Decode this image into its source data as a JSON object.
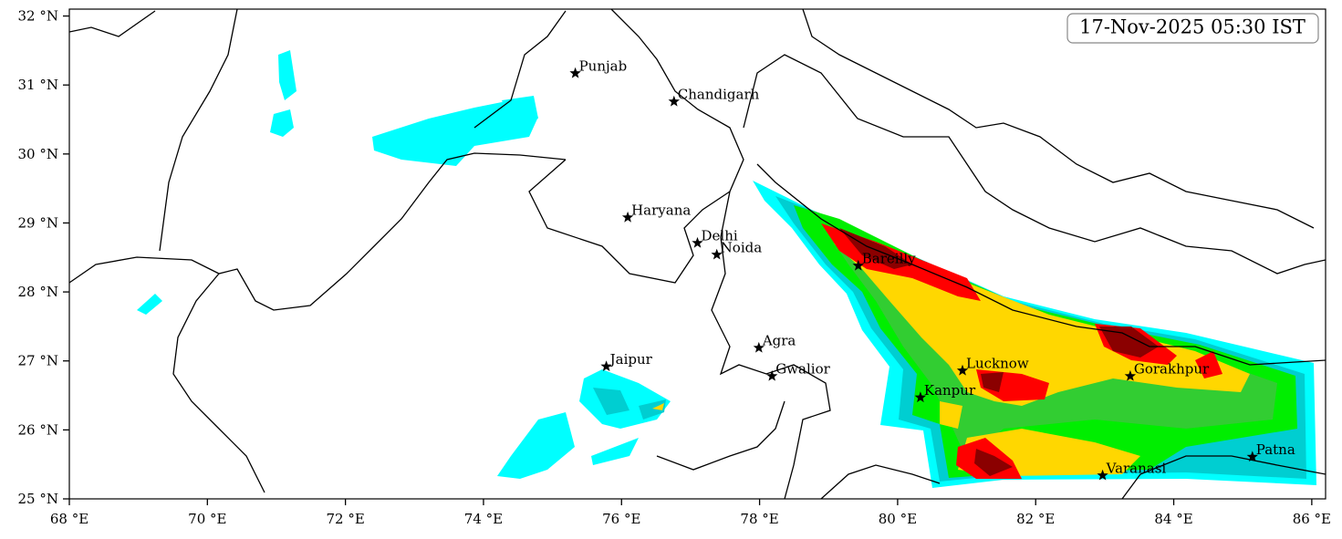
{
  "map": {
    "timestamp": "17-Nov-2025 05:30 IST",
    "xlim": [
      68,
      86.2
    ],
    "ylim": [
      25,
      32.1
    ],
    "xticks": [
      {
        "value": 68,
        "label": "68 °E"
      },
      {
        "value": 70,
        "label": "70 °E"
      },
      {
        "value": 72,
        "label": "72 °E"
      },
      {
        "value": 74,
        "label": "74 °E"
      },
      {
        "value": 76,
        "label": "76 °E"
      },
      {
        "value": 78,
        "label": "78 °E"
      },
      {
        "value": 80,
        "label": "80 °E"
      },
      {
        "value": 82,
        "label": "82 °E"
      },
      {
        "value": 84,
        "label": "84 °E"
      },
      {
        "value": 86,
        "label": "86 °E"
      }
    ],
    "yticks": [
      {
        "value": 25,
        "label": "25 °N"
      },
      {
        "value": 26,
        "label": "26 °N"
      },
      {
        "value": 27,
        "label": "27 °N"
      },
      {
        "value": 28,
        "label": "28 °N"
      },
      {
        "value": 29,
        "label": "29 °N"
      },
      {
        "value": 30,
        "label": "30 °N"
      },
      {
        "value": 31,
        "label": "31 °N"
      },
      {
        "value": 32,
        "label": "32 °N"
      }
    ],
    "cities": [
      {
        "name": "Punjab",
        "x": 75.33,
        "y": 31.17
      },
      {
        "name": "Chandigarh",
        "x": 76.76,
        "y": 30.76
      },
      {
        "name": "Haryana",
        "x": 76.09,
        "y": 29.08
      },
      {
        "name": "Delhi",
        "x": 77.1,
        "y": 28.71
      },
      {
        "name": "Noida",
        "x": 77.38,
        "y": 28.54
      },
      {
        "name": "Bareilly",
        "x": 79.43,
        "y": 28.38
      },
      {
        "name": "Agra",
        "x": 77.99,
        "y": 27.19
      },
      {
        "name": "Jaipur",
        "x": 75.78,
        "y": 26.92
      },
      {
        "name": "Gwalior",
        "x": 78.18,
        "y": 26.78
      },
      {
        "name": "Lucknow",
        "x": 80.94,
        "y": 26.86
      },
      {
        "name": "Kanpur",
        "x": 80.33,
        "y": 26.47
      },
      {
        "name": "Gorakhpur",
        "x": 83.37,
        "y": 26.78
      },
      {
        "name": "Varanasi",
        "x": 82.97,
        "y": 25.34
      },
      {
        "name": "Patna",
        "x": 85.14,
        "y": 25.61
      }
    ]
  }
}
